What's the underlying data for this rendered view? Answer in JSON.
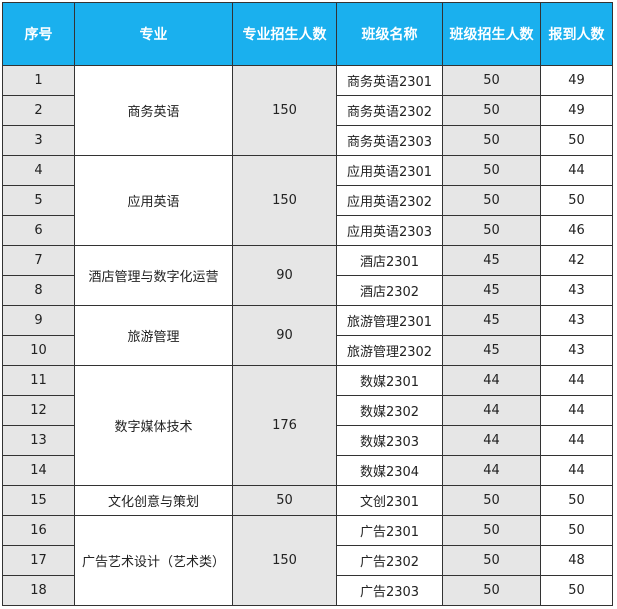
{
  "headers": [
    "序号",
    "专业",
    "专业招生人数",
    "班级名称",
    "班级招生人数",
    "报到人数"
  ],
  "majors": [
    {
      "name": "商务英语",
      "quota": "150",
      "rows": [
        {
          "no": "1",
          "class": "商务英语2301",
          "class_quota": "50",
          "reported": "49"
        },
        {
          "no": "2",
          "class": "商务英语2302",
          "class_quota": "50",
          "reported": "49"
        },
        {
          "no": "3",
          "class": "商务英语2303",
          "class_quota": "50",
          "reported": "50"
        }
      ]
    },
    {
      "name": "应用英语",
      "quota": "150",
      "rows": [
        {
          "no": "4",
          "class": "应用英语2301",
          "class_quota": "50",
          "reported": "44"
        },
        {
          "no": "5",
          "class": "应用英语2302",
          "class_quota": "50",
          "reported": "50"
        },
        {
          "no": "6",
          "class": "应用英语2303",
          "class_quota": "50",
          "reported": "46"
        }
      ]
    },
    {
      "name": "酒店管理与数字化运营",
      "quota": "90",
      "rows": [
        {
          "no": "7",
          "class": "酒店2301",
          "class_quota": "45",
          "reported": "42"
        },
        {
          "no": "8",
          "class": "酒店2302",
          "class_quota": "45",
          "reported": "43"
        }
      ]
    },
    {
      "name": "旅游管理",
      "quota": "90",
      "rows": [
        {
          "no": "9",
          "class": "旅游管理2301",
          "class_quota": "45",
          "reported": "43"
        },
        {
          "no": "10",
          "class": "旅游管理2302",
          "class_quota": "45",
          "reported": "43"
        }
      ]
    },
    {
      "name": "数字媒体技术",
      "quota": "176",
      "rows": [
        {
          "no": "11",
          "class": "数媒2301",
          "class_quota": "44",
          "reported": "44"
        },
        {
          "no": "12",
          "class": "数媒2302",
          "class_quota": "44",
          "reported": "44"
        },
        {
          "no": "13",
          "class": "数媒2303",
          "class_quota": "44",
          "reported": "44"
        },
        {
          "no": "14",
          "class": "数媒2304",
          "class_quota": "44",
          "reported": "44"
        }
      ]
    },
    {
      "name": "文化创意与策划",
      "quota": "50",
      "rows": [
        {
          "no": "15",
          "class": "文创2301",
          "class_quota": "50",
          "reported": "50"
        }
      ]
    },
    {
      "name": "广告艺术设计（艺术类）",
      "quota": "150",
      "rows": [
        {
          "no": "16",
          "class": "广告2301",
          "class_quota": "50",
          "reported": "50"
        },
        {
          "no": "17",
          "class": "广告2302",
          "class_quota": "50",
          "reported": "48"
        },
        {
          "no": "18",
          "class": "广告2303",
          "class_quota": "50",
          "reported": "50"
        }
      ]
    }
  ],
  "colors": {
    "header_bg": "#1ab0ee",
    "header_text": "#ffffff",
    "shaded_cell": "#e6e6e6",
    "border": "#333333"
  }
}
